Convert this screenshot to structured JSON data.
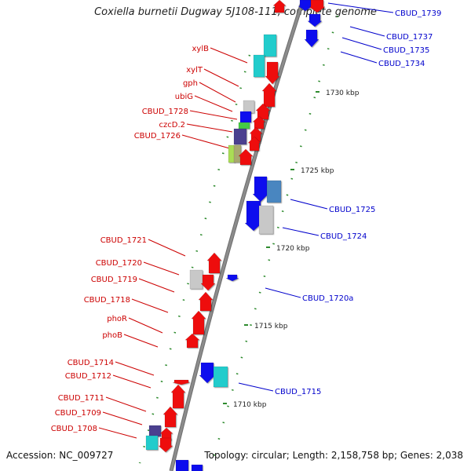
{
  "title": "Coxiella burnetii Dugway 5J108-111, complete genome",
  "footer": {
    "accession": "Accession: NC_009727",
    "topology": "Topology: circular; Length: 2,158,758 bp; Genes: 2,038"
  },
  "colors": {
    "backbone": "#8c8c8c",
    "forward_label": "#cc0000",
    "reverse_label": "#0000cc",
    "tick": "#2e8b2e",
    "red": "#ee1111",
    "blue": "#1111ee",
    "cyan": "#22cccc",
    "gray": "#c8c8c8",
    "steel": "#4a86c0",
    "purple": "#4b3f8f",
    "green": "#44cc44",
    "lime": "#aadd55",
    "olive": "#a8a870"
  },
  "scale_labels": [
    "1730 kbp",
    "1725 kbp",
    "1720 kbp",
    "1715 kbp",
    "1710 kbp"
  ],
  "forward_labels": [
    "xylB",
    "xylT",
    "gph",
    "ubiG",
    "CBUD_1728",
    "czcD.2",
    "CBUD_1726",
    "CBUD_1721",
    "CBUD_1720",
    "CBUD_1719",
    "CBUD_1718",
    "phoR",
    "phoB",
    "CBUD_1714",
    "CBUD_1712",
    "CBUD_1711",
    "CBUD_1709",
    "CBUD_1708"
  ],
  "reverse_labels": [
    "CBUD_1739",
    "CBUD_1737",
    "CBUD_1735",
    "CBUD_1734",
    "CBUD_1725",
    "CBUD_1724",
    "CBUD_1720a",
    "CBUD_1715"
  ]
}
